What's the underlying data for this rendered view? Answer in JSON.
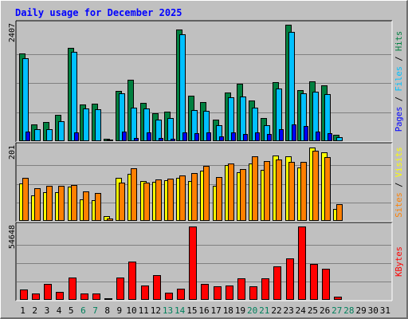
{
  "chart_data": {
    "type": "bar",
    "title": "Daily usage for December 2025",
    "categories": [
      "1",
      "2",
      "3",
      "4",
      "5",
      "6",
      "7",
      "8",
      "9",
      "10",
      "11",
      "12",
      "13",
      "14",
      "15",
      "16",
      "17",
      "18",
      "19",
      "20",
      "21",
      "22",
      "23",
      "24",
      "25",
      "26",
      "27",
      "28",
      "29",
      "30",
      "31"
    ],
    "weekend_days": [
      "6",
      "7",
      "13",
      "14",
      "20",
      "21",
      "27",
      "28"
    ],
    "panels": [
      {
        "id": "hits",
        "ymax_label": "2407",
        "ymax": 2407,
        "axis_labels": [
          "Pages",
          "Files",
          "Hits"
        ],
        "series": [
          {
            "name": "Hits",
            "color": "#008040",
            "values": [
              1815,
              345,
              397,
              544,
              1931,
              758,
              771,
              45,
              1045,
              1270,
              794,
              576,
              607,
              2303,
              947,
              803,
              448,
              1005,
              1187,
              835,
              475,
              1221,
              2407,
              1053,
              1233,
              1153,
              127,
              0,
              0,
              0,
              0
            ]
          },
          {
            "name": "Files",
            "color": "#00c0ff",
            "values": [
              1716,
              247,
              244,
              418,
              1843,
              673,
              658,
              27,
              981,
              687,
              681,
              446,
              486,
              2217,
              645,
              621,
              331,
              906,
              923,
              699,
              336,
              1087,
              2262,
              983,
              1017,
              968,
              90,
              0,
              0,
              0,
              0
            ]
          },
          {
            "name": "Pages",
            "color": "#0000ff",
            "values": [
              196,
              18,
              13,
              23,
              184,
              13,
              17,
              4,
              195,
              59,
              186,
              59,
              53,
              177,
              159,
              179,
              101,
              177,
              141,
              185,
              149,
              248,
              352,
              309,
              206,
              163,
              4,
              0,
              0,
              0,
              0
            ]
          }
        ]
      },
      {
        "id": "visits",
        "ymax_label": "201",
        "ymax": 201,
        "axis_labels": [
          "Sites",
          "Visits"
        ],
        "series": [
          {
            "name": "Visits",
            "color": "#ffff00",
            "values": [
              102,
              70,
              78,
              78,
              93,
              58,
              56,
              12,
              117,
              127,
              108,
              105,
              110,
              116,
              108,
              136,
              96,
              152,
              132,
              156,
              139,
              177,
              176,
              144,
              199,
              186,
              33,
              0,
              0,
              0,
              0
            ]
          },
          {
            "name": "Sites",
            "color": "#ff8000",
            "values": [
              116,
              88,
              96,
              96,
              98,
              81,
              76,
              7,
              103,
              142,
              104,
              112,
              115,
              124,
              130,
              150,
              119,
              156,
              140,
              174,
              163,
              166,
              161,
              159,
              191,
              173,
              45,
              0,
              0,
              0,
              0
            ]
          }
        ]
      },
      {
        "id": "kbytes",
        "ymax_label": "54648",
        "ymax": 54648,
        "axis_labels": [
          "KBytes"
        ],
        "series": [
          {
            "name": "KBytes",
            "color": "#ff0000",
            "values": [
              8014,
              4790,
              11713,
              5954,
              16720,
              4665,
              4601,
              1016,
              16735,
              28584,
              10669,
              18609,
              5271,
              8268,
              54648,
              11723,
              10263,
              10767,
              15816,
              10374,
              15850,
              24810,
              30913,
              54646,
              26749,
              23243,
              2145,
              0,
              0,
              0,
              0
            ]
          }
        ]
      }
    ],
    "grid": true,
    "legend": "right-vertical-text"
  },
  "colors": {
    "background": "#c0c0c0",
    "plot_background": "#c0c0c0",
    "title": "#0000ff",
    "weekday_label": "#000000",
    "weekend_label": "#00805c",
    "gridline": "#808080"
  }
}
